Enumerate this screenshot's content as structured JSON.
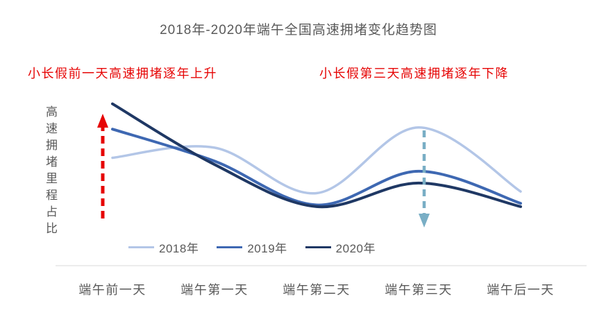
{
  "title": "2018年-2020年端午全国高速拥堵变化趋势图",
  "annotations": {
    "rising": "小长假前一天高速拥堵逐年上升",
    "falling": "小长假第三天高速拥堵逐年下降",
    "color": "#e60505"
  },
  "y_axis_label": "高速拥堵里程占比",
  "colors": {
    "text_gray": "#595959",
    "axis_line": "#d8d8d8",
    "rising_arrow": "#e60505",
    "falling_arrow": "#79aec5"
  },
  "chart_data": {
    "type": "line",
    "title": "2018年-2020年端午全国高速拥堵变化趋势图",
    "categories": [
      "端午前一天",
      "端午第一天",
      "端午第二天",
      "端午第三天",
      "端午后一天"
    ],
    "series": [
      {
        "name": "2018年",
        "color": "#b3c6e7",
        "values": [
          64,
          70,
          43,
          82,
          44
        ]
      },
      {
        "name": "2019年",
        "color": "#3e68b2",
        "values": [
          81,
          62,
          36,
          56,
          37
        ]
      },
      {
        "name": "2020年",
        "color": "#1f3864",
        "values": [
          96,
          60,
          35,
          49,
          35
        ]
      }
    ],
    "xlabel": "",
    "ylabel": "高速拥堵里程占比",
    "ylim": [
      0,
      100
    ],
    "y_scale_note": "relative congestion level, no numeric ticks shown",
    "grid": false,
    "legend_position": "bottom",
    "smooth": true,
    "arrows": [
      {
        "name": "rising-arrow",
        "category": "端午前一天",
        "direction": "up",
        "color": "#e60505"
      },
      {
        "name": "falling-arrow",
        "category": "端午第三天",
        "direction": "down",
        "color": "#79aec5"
      }
    ]
  }
}
